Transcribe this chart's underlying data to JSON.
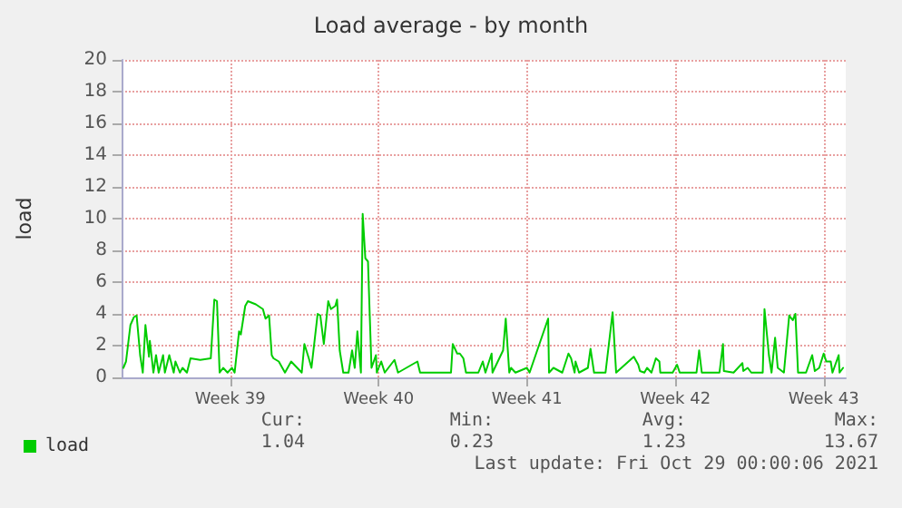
{
  "chart_data": {
    "type": "line",
    "title": "Load average - by month",
    "ylabel": "load",
    "xlim": [
      "2021-09-24T21:00",
      "2021-10-29T01:00"
    ],
    "xticks": [
      {
        "value": "2021-09-30",
        "label": "Week 39"
      },
      {
        "value": "2021-10-07",
        "label": "Week 40"
      },
      {
        "value": "2021-10-14",
        "label": "Week 41"
      },
      {
        "value": "2021-10-21",
        "label": "Week 42"
      },
      {
        "value": "2021-10-28",
        "label": "Week 43"
      }
    ],
    "ylim": [
      0,
      20
    ],
    "yticks": [
      0,
      2,
      4,
      6,
      8,
      10,
      12,
      14,
      16,
      18,
      20
    ],
    "grid": true,
    "legend": "bottom left",
    "marker": "none",
    "line_style": "solid",
    "series": [
      {
        "name": "load",
        "color": "#00cc00",
        "x": [
          "2021-09-24T23:00",
          "2021-09-25T02:00",
          "2021-09-25T07:00",
          "2021-09-25T11:00",
          "2021-09-25T14:00",
          "2021-09-25T18:00",
          "2021-09-25T21:00",
          "2021-09-26T00:00",
          "2021-09-26T04:00",
          "2021-09-26T05:00",
          "2021-09-26T09:00",
          "2021-09-26T12:00",
          "2021-09-26T15:00",
          "2021-09-26T20:00",
          "2021-09-26T22:00",
          "2021-09-27T03:00",
          "2021-09-27T08:00",
          "2021-09-27T10:00",
          "2021-09-27T15:00",
          "2021-09-27T18:00",
          "2021-09-27T23:00",
          "2021-09-28T03:00",
          "2021-09-28T14:00",
          "2021-09-29T02:00",
          "2021-09-29T06:00",
          "2021-09-29T09:00",
          "2021-09-29T12:00",
          "2021-09-29T16:00",
          "2021-09-29T21:00",
          "2021-09-30T02:00",
          "2021-09-30T05:00",
          "2021-09-30T10:00",
          "2021-09-30T12:00",
          "2021-09-30T17:00",
          "2021-09-30T20:00",
          "2021-10-01T05:00",
          "2021-10-01T13:00",
          "2021-10-01T16:00",
          "2021-10-01T20:00",
          "2021-10-01T23:00",
          "2021-10-02T01:00",
          "2021-10-02T07:00",
          "2021-10-02T14:00",
          "2021-10-02T21:00",
          "2021-10-03T09:00",
          "2021-10-03T12:00",
          "2021-10-03T17:00",
          "2021-10-03T20:00",
          "2021-10-04T03:00",
          "2021-10-04T06:00",
          "2021-10-04T10:00",
          "2021-10-04T15:00",
          "2021-10-04T18:00",
          "2021-10-04T23:00",
          "2021-10-05T01:00",
          "2021-10-05T04:00",
          "2021-10-05T08:00",
          "2021-10-05T14:00",
          "2021-10-05T18:00",
          "2021-10-05T21:00",
          "2021-10-06T00:00",
          "2021-10-06T04:00",
          "2021-10-06T06:00",
          "2021-10-06T09:00",
          "2021-10-06T12:00",
          "2021-10-06T14:00",
          "2021-10-06T16:00",
          "2021-10-06T21:00",
          "2021-10-06T22:00",
          "2021-10-07T03:00",
          "2021-10-07T07:00",
          "2021-10-07T18:00",
          "2021-10-07T22:00",
          "2021-10-08T20:00",
          "2021-10-08T23:00",
          "2021-10-10T10:00",
          "2021-10-10T12:00",
          "2021-10-10T17:00",
          "2021-10-10T20:00",
          "2021-10-11T00:00",
          "2021-10-11T03:00",
          "2021-10-11T17:00",
          "2021-10-11T22:00",
          "2021-10-12T01:00",
          "2021-10-12T08:00",
          "2021-10-12T09:00",
          "2021-10-12T21:00",
          "2021-10-13T00:00",
          "2021-10-13T04:00",
          "2021-10-13T06:00",
          "2021-10-13T11:00",
          "2021-10-14T00:00",
          "2021-10-14T03:00",
          "2021-10-15T00:00",
          "2021-10-15T01:00",
          "2021-10-15T06:00",
          "2021-10-15T16:00",
          "2021-10-15T23:00",
          "2021-10-16T02:00",
          "2021-10-16T06:00",
          "2021-10-16T07:00",
          "2021-10-16T11:00",
          "2021-10-16T21:00",
          "2021-10-17T00:00",
          "2021-10-17T04:00",
          "2021-10-17T17:00",
          "2021-10-18T01:00",
          "2021-10-18T05:00",
          "2021-10-19T01:00",
          "2021-10-19T06:00",
          "2021-10-19T08:00",
          "2021-10-19T13:00",
          "2021-10-19T16:00",
          "2021-10-19T21:00",
          "2021-10-20T02:00",
          "2021-10-20T06:00",
          "2021-10-20T07:00",
          "2021-10-20T17:00",
          "2021-10-20T21:00",
          "2021-10-21T02:00",
          "2021-10-21T05:00",
          "2021-10-22T00:00",
          "2021-10-22T03:00",
          "2021-10-22T06:00",
          "2021-10-23T02:00",
          "2021-10-23T06:00",
          "2021-10-23T07:00",
          "2021-10-23T18:00",
          "2021-10-24T04:00",
          "2021-10-24T05:00",
          "2021-10-24T10:00",
          "2021-10-24T14:00",
          "2021-10-25T03:00",
          "2021-10-25T05:00",
          "2021-10-25T10:00",
          "2021-10-25T13:00",
          "2021-10-25T17:00",
          "2021-10-25T20:00",
          "2021-10-26T03:00",
          "2021-10-26T09:00",
          "2021-10-26T13:00",
          "2021-10-26T16:00",
          "2021-10-26T19:00",
          "2021-10-27T04:00",
          "2021-10-27T11:00",
          "2021-10-27T14:00",
          "2021-10-27T19:00",
          "2021-10-28T00:00",
          "2021-10-28T03:00",
          "2021-10-28T08:00",
          "2021-10-28T10:00",
          "2021-10-28T17:00",
          "2021-10-28T18:00",
          "2021-10-28T22:00"
        ],
        "values": [
          0.6,
          1.0,
          3.3,
          3.8,
          3.9,
          1.4,
          0.3,
          3.3,
          1.3,
          2.3,
          0.3,
          1.4,
          0.3,
          1.4,
          0.3,
          1.4,
          0.3,
          1.0,
          0.3,
          0.6,
          0.3,
          1.2,
          1.1,
          1.2,
          4.9,
          4.8,
          0.3,
          0.6,
          0.3,
          0.6,
          0.3,
          2.9,
          2.7,
          4.5,
          4.8,
          4.6,
          4.3,
          3.7,
          3.9,
          1.4,
          1.2,
          1.0,
          0.3,
          1.0,
          0.3,
          2.1,
          1.2,
          0.6,
          4.0,
          3.9,
          2.1,
          4.8,
          4.3,
          4.5,
          4.9,
          1.7,
          0.3,
          0.3,
          1.7,
          0.6,
          2.9,
          0.3,
          10.3,
          7.5,
          7.3,
          3.9,
          0.6,
          1.4,
          0.3,
          1.0,
          0.3,
          1.1,
          0.3,
          1.0,
          0.3,
          0.3,
          2.1,
          1.5,
          1.5,
          1.2,
          0.3,
          0.3,
          1.0,
          0.3,
          1.5,
          0.3,
          1.7,
          3.7,
          0.3,
          0.6,
          0.3,
          0.6,
          0.3,
          3.7,
          0.3,
          0.6,
          0.3,
          1.5,
          1.2,
          0.3,
          1.0,
          0.3,
          0.6,
          1.8,
          0.3,
          0.3,
          4.1,
          0.3,
          1.3,
          0.8,
          0.4,
          0.3,
          0.6,
          0.3,
          1.2,
          1.0,
          0.3,
          0.3,
          0.3,
          0.8,
          0.3,
          0.3,
          1.7,
          0.3,
          0.3,
          2.1,
          0.4,
          0.3,
          0.9,
          0.4,
          0.6,
          0.3,
          0.3,
          4.3,
          1.4,
          0.3,
          2.5,
          0.6,
          0.3,
          3.9,
          3.6,
          4.0,
          0.3,
          0.3,
          1.4,
          0.4,
          0.6,
          1.5,
          1.0,
          1.0,
          0.3,
          1.4,
          0.3,
          0.6
        ]
      }
    ],
    "annotations": [
      "Cur:",
      "Min:",
      "Avg:",
      "Max:",
      "1.04",
      "0.23",
      "1.23",
      "13.67",
      "Last update: Fri Oct 29 00:00:06 2021"
    ]
  }
}
